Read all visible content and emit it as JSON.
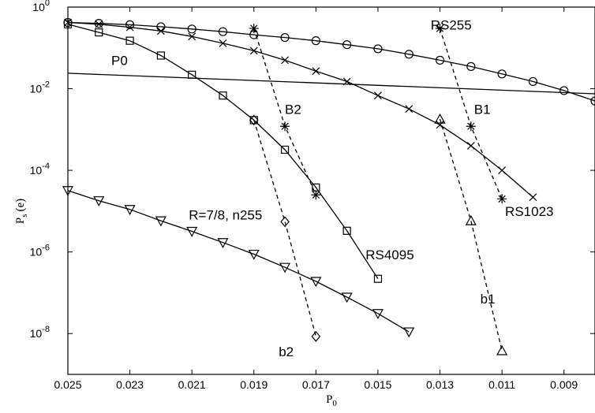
{
  "chart_data": {
    "type": "line",
    "title": "",
    "xlabel": "P",
    "xlabel_sub": "0",
    "ylabel": "P",
    "ylabel_sub": "s",
    "ylabel_suffix": "(e)",
    "xlim": [
      0.025,
      0.008
    ],
    "x_reversed": true,
    "ylim": [
      1e-09,
      1
    ],
    "yscale": "log",
    "grid": false,
    "x_ticks": [
      0.025,
      0.023,
      0.021,
      0.019,
      0.017,
      0.015,
      0.013,
      0.011,
      0.009
    ],
    "x_tick_labels": [
      "0.025",
      "0.023",
      "0.021",
      "0.019",
      "0.017",
      "0.015",
      "0.013",
      "0.011",
      "0.009"
    ],
    "y_ticks": [
      1,
      0.01,
      0.0001,
      1e-06,
      1e-08
    ],
    "y_tick_labels": [
      {
        "base": "10",
        "exp": "0"
      },
      {
        "base": "10",
        "exp": "-2"
      },
      {
        "base": "10",
        "exp": "-4"
      },
      {
        "base": "10",
        "exp": "-6"
      },
      {
        "base": "10",
        "exp": "-8"
      }
    ],
    "series": [
      {
        "name": "RS255",
        "marker": "circle",
        "dash": "solid",
        "x": [
          0.025,
          0.024,
          0.023,
          0.022,
          0.021,
          0.02,
          0.019,
          0.018,
          0.017,
          0.016,
          0.015,
          0.014,
          0.013,
          0.012,
          0.011,
          0.01,
          0.009,
          0.008
        ],
        "y": [
          0.42,
          0.4,
          0.37,
          0.33,
          0.29,
          0.25,
          0.21,
          0.18,
          0.15,
          0.12,
          0.095,
          0.07,
          0.05,
          0.035,
          0.023,
          0.015,
          0.009,
          0.005
        ]
      },
      {
        "name": "RS1023",
        "marker": "x",
        "dash": "solid",
        "x": [
          0.025,
          0.024,
          0.023,
          0.022,
          0.021,
          0.02,
          0.019,
          0.018,
          0.017,
          0.016,
          0.015,
          0.014,
          0.013,
          0.012,
          0.011,
          0.01
        ],
        "y": [
          0.42,
          0.38,
          0.32,
          0.26,
          0.19,
          0.13,
          0.085,
          0.05,
          0.027,
          0.015,
          0.0068,
          0.0032,
          0.0013,
          0.0004,
          0.0001,
          2.2e-05
        ]
      },
      {
        "name": "RS4095",
        "marker": "square",
        "dash": "solid",
        "x": [
          0.025,
          0.024,
          0.023,
          0.022,
          0.021,
          0.02,
          0.019,
          0.018,
          0.017,
          0.016,
          0.015
        ],
        "y": [
          0.38,
          0.24,
          0.15,
          0.065,
          0.022,
          0.0068,
          0.0017,
          0.00032,
          3.8e-05,
          3.3e-06,
          2.2e-07
        ]
      },
      {
        "name": "R=7/8, n255",
        "marker": "triangle-down",
        "dash": "solid",
        "x": [
          0.025,
          0.024,
          0.023,
          0.022,
          0.021,
          0.02,
          0.019,
          0.018,
          0.017,
          0.016,
          0.015,
          0.014
        ],
        "y": [
          3.2e-05,
          1.8e-05,
          1.1e-05,
          5.8e-06,
          3.2e-06,
          1.7e-06,
          8.8e-07,
          4.2e-07,
          1.9e-07,
          7.8e-08,
          3.1e-08,
          1.1e-08
        ]
      },
      {
        "name": "P0",
        "marker": "none",
        "dash": "solid",
        "x": [
          0.025,
          0.008
        ],
        "y": [
          0.024,
          0.0075
        ]
      },
      {
        "name": "B2",
        "marker": "star",
        "dash": "dashed",
        "x": [
          0.019,
          0.018,
          0.017
        ],
        "y": [
          0.3,
          0.0012,
          2.5e-05
        ]
      },
      {
        "name": "B1",
        "marker": "star",
        "dash": "dashed",
        "x": [
          0.013,
          0.012,
          0.011
        ],
        "y": [
          0.3,
          0.0012,
          2e-05
        ]
      },
      {
        "name": "b2",
        "marker": "diamond",
        "dash": "dashed",
        "x": [
          0.019,
          0.018,
          0.017
        ],
        "y": [
          0.0017,
          5.5e-06,
          8.5e-09
        ]
      },
      {
        "name": "b1",
        "marker": "triangle-up",
        "dash": "dashed",
        "x": [
          0.013,
          0.012,
          0.011
        ],
        "y": [
          0.0018,
          5.8e-06,
          3.8e-09
        ]
      }
    ],
    "annotations": [
      {
        "text": "RS255",
        "x": 0.0133,
        "y": 0.28,
        "anchor": "start"
      },
      {
        "text": "P0",
        "x": 0.0236,
        "y": 0.038,
        "anchor": "start"
      },
      {
        "text": "B2",
        "x": 0.018,
        "y": 0.0024,
        "anchor": "start"
      },
      {
        "text": "B1",
        "x": 0.0119,
        "y": 0.0024,
        "anchor": "start"
      },
      {
        "text": "RS1023",
        "x": 0.0109,
        "y": 7.7e-06,
        "anchor": "start"
      },
      {
        "text": "R=7/8, n255",
        "x": 0.0211,
        "y": 6.3e-06,
        "anchor": "start"
      },
      {
        "text": "RS4095",
        "x": 0.0154,
        "y": 6.6e-07,
        "anchor": "start"
      },
      {
        "text": "b1",
        "x": 0.0117,
        "y": 5.5e-08,
        "anchor": "start"
      },
      {
        "text": "b2",
        "x": 0.0182,
        "y": 2.8e-09,
        "anchor": "start"
      }
    ]
  }
}
